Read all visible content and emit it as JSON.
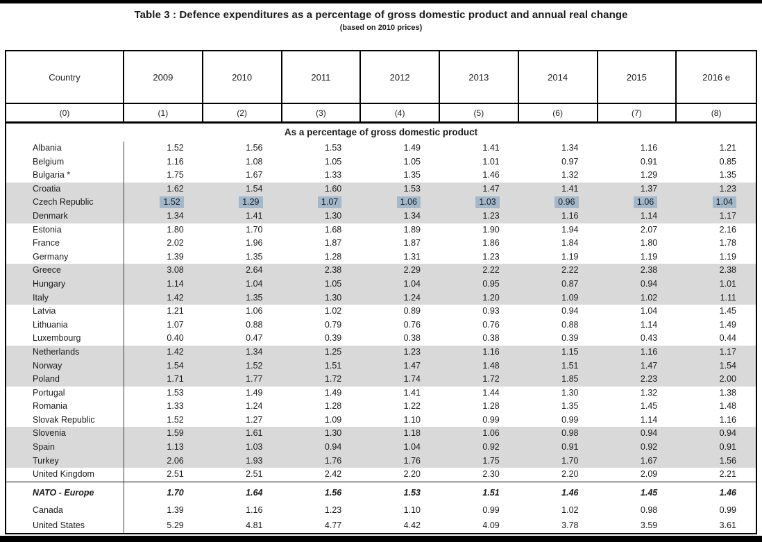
{
  "page": {
    "title": "Table 3 : Defence expenditures as a percentage of gross domestic product and annual real change",
    "subtitle": "(based on 2010 prices)"
  },
  "table": {
    "columns": [
      "Country",
      "2009",
      "2010",
      "2011",
      "2012",
      "2013",
      "2014",
      "2015",
      "2016 e"
    ],
    "column_indices": [
      "(0)",
      "(1)",
      "(2)",
      "(3)",
      "(4)",
      "(5)",
      "(6)",
      "(7)",
      "(8)"
    ],
    "section_header": "As a percentage of gross domestic product",
    "colors": {
      "row_shading": "#d9d9d9",
      "selection_highlight": "#a3b8ca",
      "border": "#000000"
    },
    "rows": [
      {
        "country": "Albania",
        "values": [
          "1.52",
          "1.56",
          "1.53",
          "1.49",
          "1.41",
          "1.34",
          "1.16",
          "1.21"
        ],
        "shaded": false
      },
      {
        "country": "Belgium",
        "values": [
          "1.16",
          "1.08",
          "1.05",
          "1.05",
          "1.01",
          "0.97",
          "0.91",
          "0.85"
        ],
        "shaded": false
      },
      {
        "country": "Bulgaria *",
        "values": [
          "1.75",
          "1.67",
          "1.33",
          "1.35",
          "1.46",
          "1.32",
          "1.29",
          "1.35"
        ],
        "shaded": false
      },
      {
        "country": "Croatia",
        "values": [
          "1.62",
          "1.54",
          "1.60",
          "1.53",
          "1.47",
          "1.41",
          "1.37",
          "1.23"
        ],
        "shaded": true
      },
      {
        "country": "Czech Republic",
        "values": [
          "1.52",
          "1.29",
          "1.07",
          "1.06",
          "1.03",
          "0.96",
          "1.06",
          "1.04"
        ],
        "shaded": true,
        "highlighted": true
      },
      {
        "country": "Denmark",
        "values": [
          "1.34",
          "1.41",
          "1.30",
          "1.34",
          "1.23",
          "1.16",
          "1.14",
          "1.17"
        ],
        "shaded": true
      },
      {
        "country": "Estonia",
        "values": [
          "1.80",
          "1.70",
          "1.68",
          "1.89",
          "1.90",
          "1.94",
          "2.07",
          "2.16"
        ],
        "shaded": false
      },
      {
        "country": "France",
        "values": [
          "2.02",
          "1.96",
          "1.87",
          "1.87",
          "1.86",
          "1.84",
          "1.80",
          "1.78"
        ],
        "shaded": false
      },
      {
        "country": "Germany",
        "values": [
          "1.39",
          "1.35",
          "1.28",
          "1.31",
          "1.23",
          "1.19",
          "1.19",
          "1.19"
        ],
        "shaded": false
      },
      {
        "country": "Greece",
        "values": [
          "3.08",
          "2.64",
          "2.38",
          "2.29",
          "2.22",
          "2.22",
          "2.38",
          "2.38"
        ],
        "shaded": true
      },
      {
        "country": "Hungary",
        "values": [
          "1.14",
          "1.04",
          "1.05",
          "1.04",
          "0.95",
          "0.87",
          "0.94",
          "1.01"
        ],
        "shaded": true
      },
      {
        "country": "Italy",
        "values": [
          "1.42",
          "1.35",
          "1.30",
          "1.24",
          "1.20",
          "1.09",
          "1.02",
          "1.11"
        ],
        "shaded": true
      },
      {
        "country": "Latvia",
        "values": [
          "1.21",
          "1.06",
          "1.02",
          "0.89",
          "0.93",
          "0.94",
          "1.04",
          "1.45"
        ],
        "shaded": false
      },
      {
        "country": "Lithuania",
        "values": [
          "1.07",
          "0.88",
          "0.79",
          "0.76",
          "0.76",
          "0.88",
          "1.14",
          "1.49"
        ],
        "shaded": false
      },
      {
        "country": "Luxembourg",
        "values": [
          "0.40",
          "0.47",
          "0.39",
          "0.38",
          "0.38",
          "0.39",
          "0.43",
          "0.44"
        ],
        "shaded": false
      },
      {
        "country": "Netherlands",
        "values": [
          "1.42",
          "1.34",
          "1.25",
          "1.23",
          "1.16",
          "1.15",
          "1.16",
          "1.17"
        ],
        "shaded": true
      },
      {
        "country": "Norway",
        "values": [
          "1.54",
          "1.52",
          "1.51",
          "1.47",
          "1.48",
          "1.51",
          "1.47",
          "1.54"
        ],
        "shaded": true
      },
      {
        "country": "Poland",
        "values": [
          "1.71",
          "1.77",
          "1.72",
          "1.74",
          "1.72",
          "1.85",
          "2.23",
          "2.00"
        ],
        "shaded": true
      },
      {
        "country": "Portugal",
        "values": [
          "1.53",
          "1.49",
          "1.49",
          "1.41",
          "1.44",
          "1.30",
          "1.32",
          "1.38"
        ],
        "shaded": false
      },
      {
        "country": "Romania",
        "values": [
          "1.33",
          "1.24",
          "1.28",
          "1.22",
          "1.28",
          "1.35",
          "1.45",
          "1.48"
        ],
        "shaded": false
      },
      {
        "country": "Slovak Republic",
        "values": [
          "1.52",
          "1.27",
          "1.09",
          "1.10",
          "0.99",
          "0.99",
          "1.14",
          "1.16"
        ],
        "shaded": false
      },
      {
        "country": "Slovenia",
        "values": [
          "1.59",
          "1.61",
          "1.30",
          "1.18",
          "1.06",
          "0.98",
          "0.94",
          "0.94"
        ],
        "shaded": true
      },
      {
        "country": "Spain",
        "values": [
          "1.13",
          "1.03",
          "0.94",
          "1.04",
          "0.92",
          "0.91",
          "0.92",
          "0.91"
        ],
        "shaded": true
      },
      {
        "country": "Turkey",
        "values": [
          "2.06",
          "1.93",
          "1.76",
          "1.76",
          "1.75",
          "1.70",
          "1.67",
          "1.56"
        ],
        "shaded": true
      },
      {
        "country": "United Kingdom",
        "values": [
          "2.51",
          "2.51",
          "2.42",
          "2.20",
          "2.30",
          "2.20",
          "2.09",
          "2.21"
        ],
        "shaded": false
      },
      {
        "country": "NATO - Europe",
        "values": [
          "1.70",
          "1.64",
          "1.56",
          "1.53",
          "1.51",
          "1.46",
          "1.45",
          "1.46"
        ],
        "shaded": false,
        "bold_italic": true,
        "separator_above": true
      },
      {
        "country": "Canada",
        "values": [
          "1.39",
          "1.16",
          "1.23",
          "1.10",
          "0.99",
          "1.02",
          "0.98",
          "0.99"
        ],
        "shaded": false
      },
      {
        "country": "United States",
        "values": [
          "5.29",
          "4.81",
          "4.77",
          "4.42",
          "4.09",
          "3.78",
          "3.59",
          "3.61"
        ],
        "shaded": false
      }
    ]
  }
}
